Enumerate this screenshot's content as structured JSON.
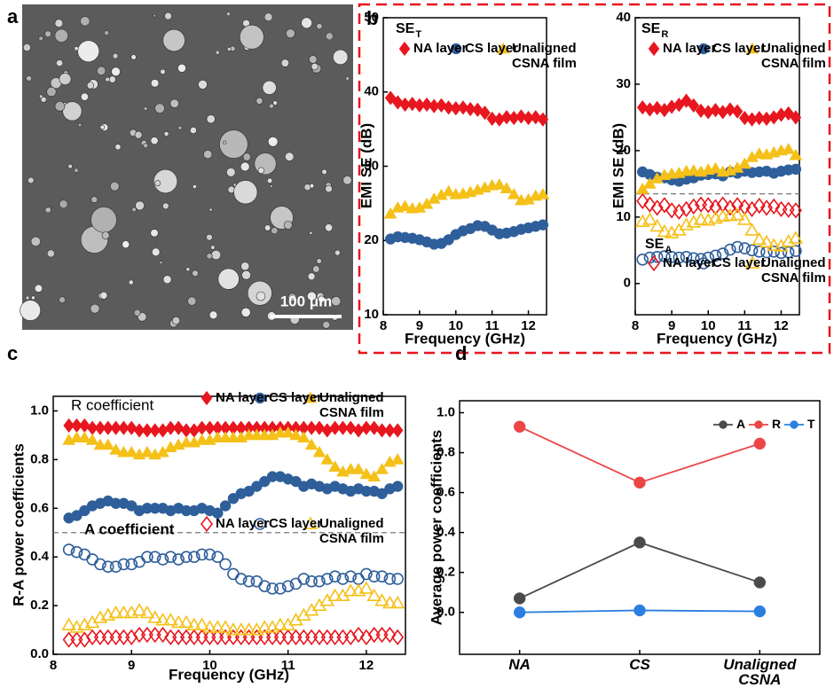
{
  "image": {
    "panel_label": "a",
    "scale_bar": "100 μm"
  },
  "chart_data": [
    {
      "type": "scatter",
      "panel_label": "b",
      "annotations": [
        {
          "text": "SE",
          "sub": "T"
        }
      ],
      "x_label": "Frequency (GHz)",
      "y_label": "EMI SE (dB)",
      "xlim": [
        8,
        12.5
      ],
      "xticks": [
        8,
        9,
        10,
        11,
        12
      ],
      "ylim": [
        10,
        50
      ],
      "yticks": [
        10,
        20,
        30,
        40,
        50
      ],
      "x": [
        8.2,
        8.4,
        8.6,
        8.8,
        9.0,
        9.2,
        9.4,
        9.6,
        9.8,
        10.0,
        10.2,
        10.4,
        10.6,
        10.8,
        11.0,
        11.2,
        11.4,
        11.6,
        11.8,
        12.0,
        12.2,
        12.4
      ],
      "series": [
        {
          "name": "NA layer",
          "color": "#e8161e",
          "marker": "diamond",
          "filled": true,
          "values": [
            39.2,
            38.6,
            38.3,
            38.4,
            38.2,
            38.3,
            38.1,
            38.2,
            37.9,
            37.8,
            37.9,
            37.7,
            37.6,
            37.2,
            36.4,
            36.3,
            36.6,
            36.5,
            36.7,
            36.5,
            36.6,
            36.3
          ]
        },
        {
          "name": "CS layer",
          "color": "#2f5f9b",
          "marker": "circle",
          "filled": true,
          "values": [
            20.2,
            20.5,
            20.4,
            20.3,
            20.1,
            19.8,
            19.5,
            19.6,
            20.1,
            20.8,
            21.3,
            21.6,
            22.0,
            21.9,
            21.4,
            20.9,
            21.0,
            21.2,
            21.5,
            21.7,
            21.9,
            22.1
          ]
        },
        {
          "name": "Unaligned CSNA film",
          "color": "#f5c018",
          "marker": "triangle",
          "filled": true,
          "values": [
            23.6,
            24.4,
            24.6,
            24.3,
            24.4,
            24.9,
            25.6,
            26.1,
            26.6,
            26.2,
            26.3,
            26.5,
            26.8,
            27.1,
            27.4,
            27.5,
            27.0,
            26.2,
            25.4,
            25.5,
            26.0,
            26.2
          ]
        }
      ]
    },
    {
      "type": "scatter",
      "annotations": [
        {
          "text": "SE",
          "sub": "R"
        },
        {
          "text": "SE",
          "sub": "A"
        }
      ],
      "x_label": "Frequency (GHz)",
      "y_label": "EMI SE (dB)",
      "xlim": [
        8,
        12.5
      ],
      "xticks": [
        8,
        9,
        10,
        11,
        12
      ],
      "ylim": [
        -4.7,
        40
      ],
      "yticks": [
        0,
        10,
        20,
        30,
        40
      ],
      "hline": 13.5,
      "x": [
        8.2,
        8.4,
        8.6,
        8.8,
        9.0,
        9.2,
        9.4,
        9.6,
        9.8,
        10.0,
        10.2,
        10.4,
        10.6,
        10.8,
        11.0,
        11.2,
        11.4,
        11.6,
        11.8,
        12.0,
        12.2,
        12.4
      ],
      "series": [
        {
          "name": "NA layer",
          "color": "#e8161e",
          "marker": "diamond",
          "filled": true,
          "values": [
            26.5,
            26.2,
            26.4,
            26.1,
            26.6,
            26.9,
            27.5,
            26.8,
            26.0,
            25.8,
            26.1,
            25.8,
            26.2,
            25.9,
            24.9,
            24.7,
            24.9,
            24.8,
            25.0,
            25.4,
            25.6,
            25.0
          ]
        },
        {
          "name": "CS layer",
          "color": "#2f5f9b",
          "marker": "circle",
          "filled": true,
          "values": [
            16.8,
            16.4,
            16.0,
            15.9,
            15.6,
            15.4,
            15.7,
            15.9,
            16.3,
            16.4,
            16.5,
            16.2,
            16.8,
            16.6,
            16.9,
            16.7,
            16.8,
            16.9,
            16.6,
            16.9,
            17.1,
            17.2
          ]
        },
        {
          "name": "Unaligned CSNA film",
          "color": "#f5c018",
          "marker": "triangle",
          "filled": true,
          "values": [
            14.2,
            15.0,
            15.8,
            16.3,
            16.5,
            16.6,
            16.9,
            17.0,
            16.8,
            17.1,
            17.3,
            16.8,
            17.0,
            17.4,
            18.0,
            19.0,
            19.5,
            19.4,
            19.7,
            20.0,
            20.2,
            19.3
          ]
        },
        {
          "name": "NA layer",
          "color": "#e8161e",
          "marker": "diamond",
          "filled": false,
          "values": [
            12.4,
            11.9,
            11.4,
            11.8,
            11.0,
            10.8,
            11.2,
            11.6,
            11.9,
            11.8,
            11.5,
            11.9,
            11.4,
            11.8,
            11.5,
            11.2,
            11.7,
            11.4,
            11.6,
            11.2,
            11.1,
            11.0
          ]
        },
        {
          "name": "CS layer",
          "color": "#2f5f9b",
          "marker": "circle",
          "filled": false,
          "values": [
            3.6,
            3.9,
            4.0,
            4.1,
            4.0,
            3.9,
            4.0,
            3.8,
            3.7,
            3.9,
            4.2,
            4.5,
            5.1,
            5.5,
            5.3,
            5.0,
            4.8,
            4.7,
            4.8,
            4.6,
            4.7,
            4.9
          ]
        },
        {
          "name": "Unaligned CSNA film",
          "color": "#f5c018",
          "marker": "triangle",
          "filled": false,
          "values": [
            9.3,
            9.6,
            8.6,
            7.8,
            7.6,
            8.0,
            8.8,
            9.2,
            9.6,
            9.5,
            9.8,
            10.1,
            10.2,
            10.3,
            9.6,
            8.0,
            6.6,
            6.2,
            5.7,
            5.6,
            6.3,
            6.8
          ]
        }
      ]
    },
    {
      "type": "scatter",
      "panel_label": "c",
      "annotations": [
        {
          "text": "R coefficient"
        },
        {
          "text": "A coefficient"
        }
      ],
      "x_label": "Frequency (GHz)",
      "y_label": "R-A power coefficients",
      "xlim": [
        8,
        12.5
      ],
      "xticks": [
        8,
        9,
        10,
        11,
        12
      ],
      "ylim": [
        0,
        1.06
      ],
      "yticks": [
        {
          "value": 0,
          "label": "0.0"
        },
        0.2,
        0.4,
        0.6,
        0.8,
        {
          "value": 1,
          "label": "1.0"
        }
      ],
      "hline": 0.5,
      "x": [
        8.2,
        8.3,
        8.4,
        8.5,
        8.6,
        8.7,
        8.8,
        8.9,
        9.0,
        9.1,
        9.2,
        9.3,
        9.4,
        9.5,
        9.6,
        9.7,
        9.8,
        9.9,
        10.0,
        10.1,
        10.2,
        10.3,
        10.4,
        10.5,
        10.6,
        10.7,
        10.8,
        10.9,
        11.0,
        11.1,
        11.2,
        11.3,
        11.4,
        11.5,
        11.6,
        11.7,
        11.8,
        11.9,
        12.0,
        12.1,
        12.2,
        12.3,
        12.4
      ],
      "series": [
        {
          "name": "NA layer",
          "color": "#e8161e",
          "marker": "diamond",
          "filled": true,
          "values": [
            0.94,
            0.94,
            0.94,
            0.93,
            0.93,
            0.93,
            0.93,
            0.93,
            0.93,
            0.92,
            0.92,
            0.92,
            0.92,
            0.93,
            0.93,
            0.92,
            0.92,
            0.93,
            0.93,
            0.93,
            0.93,
            0.93,
            0.93,
            0.93,
            0.93,
            0.93,
            0.93,
            0.93,
            0.93,
            0.93,
            0.93,
            0.93,
            0.93,
            0.92,
            0.93,
            0.93,
            0.93,
            0.92,
            0.93,
            0.93,
            0.92,
            0.92,
            0.92
          ]
        },
        {
          "name": "CS layer",
          "color": "#2f5f9b",
          "marker": "circle",
          "filled": true,
          "values": [
            0.56,
            0.57,
            0.59,
            0.61,
            0.62,
            0.63,
            0.62,
            0.62,
            0.61,
            0.59,
            0.6,
            0.6,
            0.6,
            0.59,
            0.6,
            0.59,
            0.59,
            0.6,
            0.59,
            0.58,
            0.61,
            0.64,
            0.66,
            0.67,
            0.69,
            0.71,
            0.73,
            0.73,
            0.72,
            0.71,
            0.69,
            0.7,
            0.69,
            0.68,
            0.69,
            0.68,
            0.67,
            0.68,
            0.67,
            0.67,
            0.66,
            0.68,
            0.69
          ]
        },
        {
          "name": "Unaligned CSNA film",
          "color": "#f5c018",
          "marker": "triangle",
          "filled": true,
          "values": [
            0.88,
            0.89,
            0.89,
            0.88,
            0.86,
            0.86,
            0.84,
            0.83,
            0.83,
            0.82,
            0.83,
            0.82,
            0.83,
            0.85,
            0.86,
            0.87,
            0.87,
            0.88,
            0.88,
            0.89,
            0.89,
            0.89,
            0.89,
            0.9,
            0.9,
            0.9,
            0.9,
            0.91,
            0.91,
            0.9,
            0.89,
            0.86,
            0.83,
            0.8,
            0.77,
            0.75,
            0.76,
            0.76,
            0.74,
            0.73,
            0.76,
            0.79,
            0.8
          ]
        },
        {
          "name": "NA layer",
          "color": "#e8161e",
          "marker": "diamond",
          "filled": false,
          "values": [
            0.06,
            0.06,
            0.06,
            0.07,
            0.07,
            0.07,
            0.07,
            0.07,
            0.07,
            0.08,
            0.08,
            0.08,
            0.08,
            0.07,
            0.07,
            0.07,
            0.07,
            0.07,
            0.07,
            0.07,
            0.07,
            0.07,
            0.07,
            0.07,
            0.07,
            0.07,
            0.07,
            0.07,
            0.07,
            0.07,
            0.07,
            0.07,
            0.07,
            0.07,
            0.07,
            0.07,
            0.07,
            0.08,
            0.07,
            0.08,
            0.08,
            0.08,
            0.07
          ]
        },
        {
          "name": "CS layer",
          "color": "#2f5f9b",
          "marker": "circle",
          "filled": false,
          "values": [
            0.43,
            0.42,
            0.41,
            0.39,
            0.37,
            0.36,
            0.36,
            0.37,
            0.37,
            0.38,
            0.4,
            0.4,
            0.39,
            0.4,
            0.39,
            0.4,
            0.4,
            0.41,
            0.41,
            0.4,
            0.37,
            0.33,
            0.31,
            0.3,
            0.3,
            0.28,
            0.27,
            0.27,
            0.28,
            0.29,
            0.31,
            0.3,
            0.3,
            0.31,
            0.32,
            0.31,
            0.32,
            0.31,
            0.33,
            0.32,
            0.32,
            0.31,
            0.31
          ]
        },
        {
          "name": "Unaligned CSNA film",
          "color": "#f5c018",
          "marker": "triangle",
          "filled": false,
          "values": [
            0.12,
            0.11,
            0.12,
            0.13,
            0.15,
            0.16,
            0.17,
            0.17,
            0.17,
            0.18,
            0.17,
            0.15,
            0.14,
            0.14,
            0.13,
            0.13,
            0.12,
            0.12,
            0.11,
            0.11,
            0.11,
            0.1,
            0.1,
            0.1,
            0.1,
            0.11,
            0.11,
            0.12,
            0.12,
            0.14,
            0.16,
            0.18,
            0.2,
            0.22,
            0.24,
            0.24,
            0.26,
            0.26,
            0.27,
            0.24,
            0.22,
            0.21,
            0.21
          ]
        }
      ]
    },
    {
      "type": "line",
      "panel_label": "d",
      "y_label": "Average power coefficients",
      "categories": [
        "NA",
        "CS",
        "Unaligned CSNA"
      ],
      "ylim": [
        -0.21,
        1.06
      ],
      "yticks": [
        {
          "value": 0,
          "label": "0.0"
        },
        0.2,
        0.4,
        0.6,
        0.8,
        {
          "value": 1,
          "label": "1.0"
        }
      ],
      "series": [
        {
          "name": "A",
          "color": "#4a4a4a",
          "marker": "circle",
          "filled": true,
          "values": [
            0.07,
            0.35,
            0.15
          ]
        },
        {
          "name": "R",
          "color": "#ec4646",
          "marker": "circle",
          "filled": true,
          "values": [
            0.93,
            0.65,
            0.845
          ]
        },
        {
          "name": "T",
          "color": "#2b7fe0",
          "marker": "circle",
          "filled": true,
          "values": [
            0.0,
            0.01,
            0.005
          ]
        }
      ]
    }
  ]
}
